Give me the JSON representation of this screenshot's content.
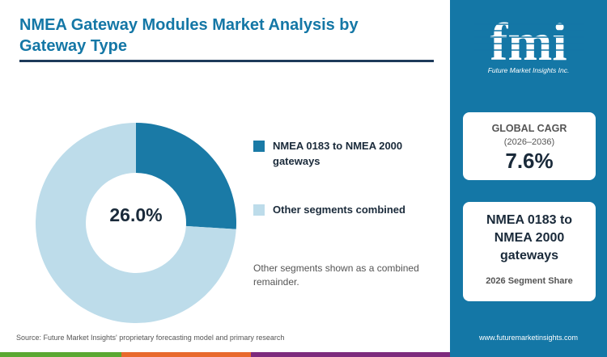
{
  "header": {
    "title": "NMEA Gateway Modules Market Analysis by Gateway Type"
  },
  "chart_data": {
    "type": "pie",
    "variant": "donut",
    "center_label": "26.0%",
    "slices": [
      {
        "label": "NMEA 0183 to NMEA 2000 gateways",
        "value": 26.0,
        "color": "#1a7aa6"
      },
      {
        "label": "Other segments combined",
        "value": 74.0,
        "color": "#bddcea"
      }
    ],
    "legend_position": "right"
  },
  "note": "Other segments shown as a combined remainder.",
  "source": "Source: Future Market Insights' proprietary forecasting model and primary research",
  "sidebar": {
    "logo_text": "fmi",
    "logo_subtitle": "Future Market Insights Inc.",
    "cagr_card": {
      "label": "GLOBAL CAGR",
      "range": "(2026–2036)",
      "value": "7.6%"
    },
    "segment_card": {
      "name": "NMEA 0183 to NMEA 2000 gateways",
      "caption": "2026 Segment Share"
    },
    "website": "www.futuremarketinsights.com"
  },
  "colors": {
    "accent": "#1477a6",
    "bottom_bar": [
      "#5aa832",
      "#e8692c",
      "#7d2a7d",
      "#1477a6"
    ]
  }
}
